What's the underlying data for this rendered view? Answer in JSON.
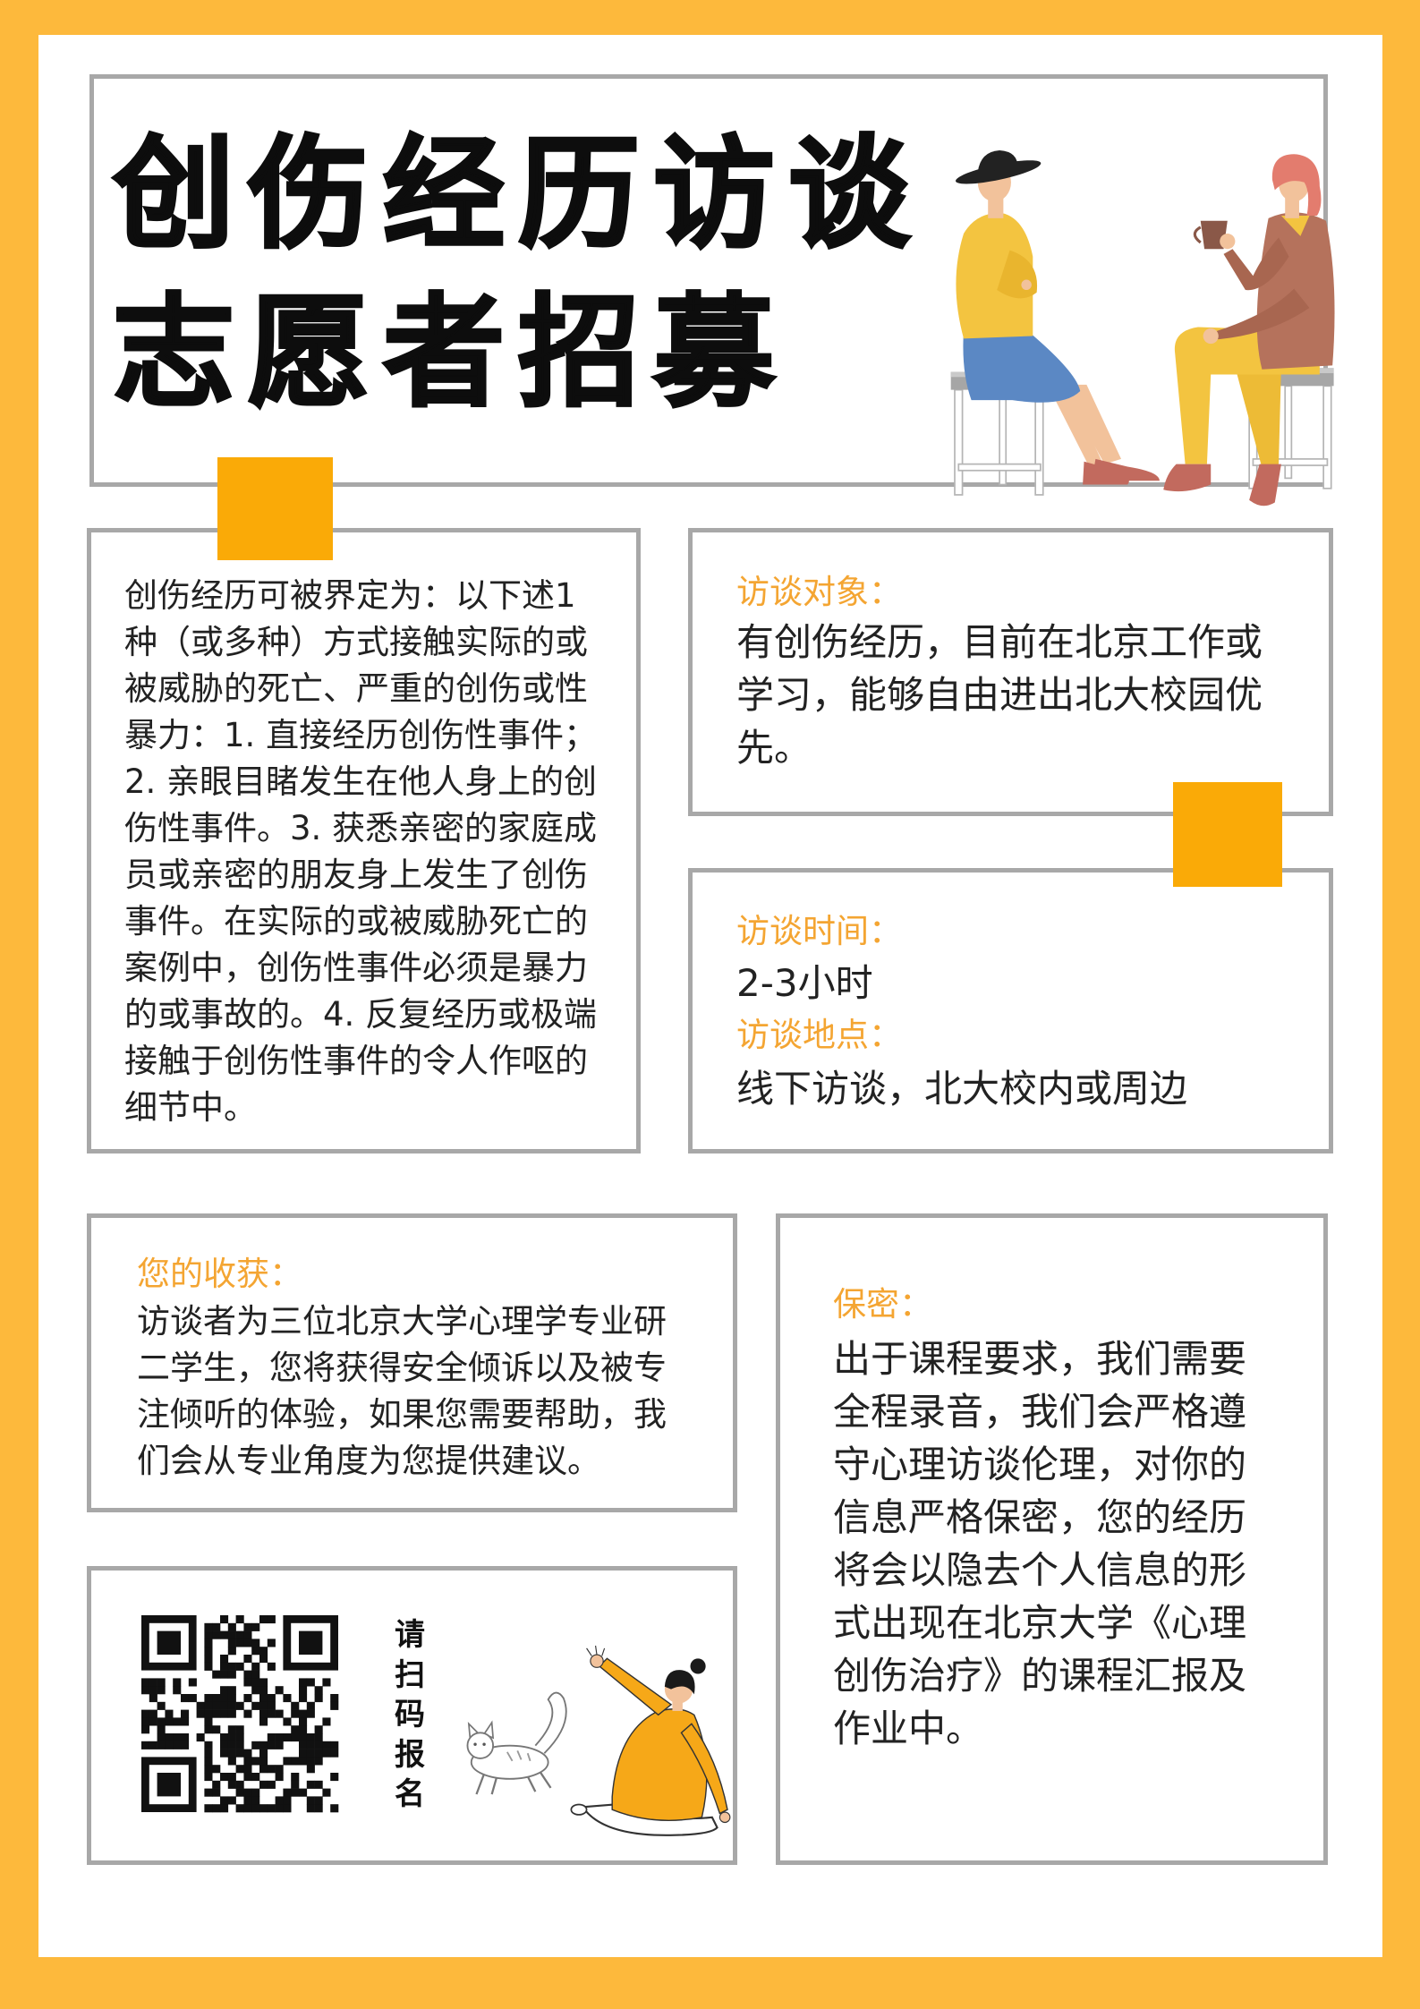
{
  "title": {
    "line1": "创伤经历访谈",
    "line2": "志愿者招募"
  },
  "definition": {
    "lines": [
      "创伤经历可被界定为：以下述1",
      "种（或多种）方式接触实际的或",
      "被威胁的死亡、严重的创伤或性",
      "暴力：1. 直接经历创伤性事件；",
      "2. 亲眼目睹发生在他人身上的创",
      "伤性事件。3. 获悉亲密的家庭成",
      "员或亲密的朋友身上发生了创伤",
      "事件。在实际的或被威胁死亡的",
      "案例中，创伤性事件必须是暴力",
      "的或事故的。4. 反复经历或极端",
      "接触于创伤性事件的令人作呕的",
      "细节中。"
    ]
  },
  "target": {
    "heading": "访谈对象：",
    "lines": [
      "有创伤经历，目前在北京工作或",
      "学习，能够自由进出北大校园优",
      "先。"
    ]
  },
  "schedule": {
    "time_heading": "访谈时间：",
    "time_value": "2-3小时",
    "place_heading": "访谈地点：",
    "place_value": "线下访谈，北大校内或周边"
  },
  "benefits": {
    "heading": "您的收获：",
    "lines": [
      "访谈者为三位北京大学心理学专业研",
      "二学生，您将获得安全倾诉以及被专",
      "注倾听的体验，如果您需要帮助，我",
      "们会从专业角度为您提供建议。"
    ]
  },
  "signup": {
    "label": "请扫码报名"
  },
  "confidentiality": {
    "heading": "保密：",
    "lines": [
      "出于课程要求，我们需要",
      "全程录音，我们会严格遵",
      "守心理访谈伦理，对你的",
      "信息严格保密，您的经历",
      "将会以隐去个人信息的形",
      "式出现在北京大学《心理",
      "创伤治疗》的课程汇报及",
      "作业中。"
    ]
  },
  "icons": {
    "qr_code": "qr-code-icon"
  },
  "colors": {
    "frame": "#FDB93C",
    "accent": "#FAAA07",
    "heading": "#F4A532",
    "border": "#A8A8A8",
    "text": "#222222"
  }
}
